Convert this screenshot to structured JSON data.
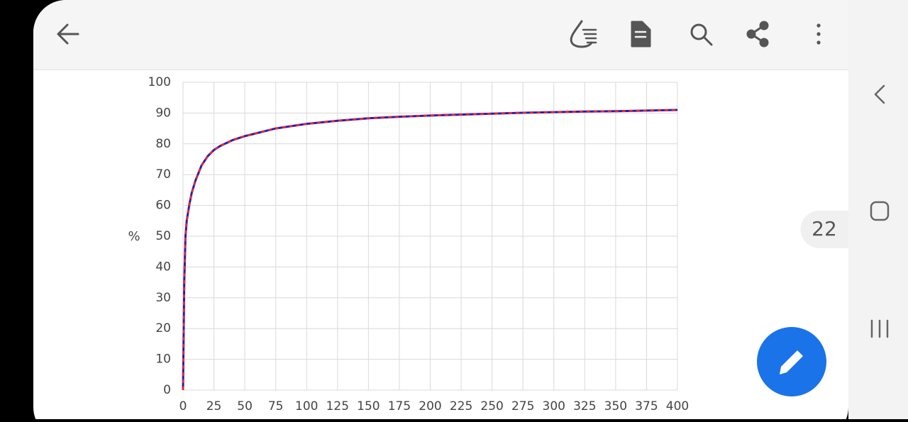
{
  "page_number": 22,
  "chart_data": {
    "type": "line",
    "ylabel": "%",
    "x": [
      0,
      1,
      2,
      3,
      5,
      7,
      10,
      15,
      20,
      25,
      30,
      40,
      50,
      60,
      75,
      100,
      125,
      150,
      175,
      200,
      225,
      250,
      275,
      300,
      325,
      350,
      375,
      400
    ],
    "series": [
      {
        "color": "#1f1fbf",
        "values": [
          0,
          35,
          50,
          55,
          60,
          64,
          68,
          73,
          76,
          78,
          79.3,
          81.2,
          82.5,
          83.5,
          85,
          86.5,
          87.5,
          88.3,
          88.8,
          89.2,
          89.5,
          89.8,
          90.1,
          90.3,
          90.5,
          90.6,
          90.8,
          91
        ]
      },
      {
        "color": "#e8282f",
        "values": [
          0,
          35,
          50,
          55,
          60,
          64,
          68,
          73,
          76,
          78,
          79.3,
          81.2,
          82.5,
          83.5,
          85,
          86.5,
          87.5,
          88.3,
          88.8,
          89.2,
          89.5,
          89.8,
          90.1,
          90.3,
          90.5,
          90.6,
          90.8,
          91
        ]
      }
    ],
    "xlim": [
      0,
      400
    ],
    "xticks": [
      0,
      25,
      50,
      75,
      100,
      125,
      150,
      175,
      200,
      225,
      250,
      275,
      300,
      325,
      350,
      375,
      400
    ],
    "ylim": [
      0,
      100
    ],
    "yticks": [
      0,
      10,
      20,
      30,
      40,
      50,
      60,
      70,
      80,
      90,
      100
    ],
    "grid": true
  }
}
